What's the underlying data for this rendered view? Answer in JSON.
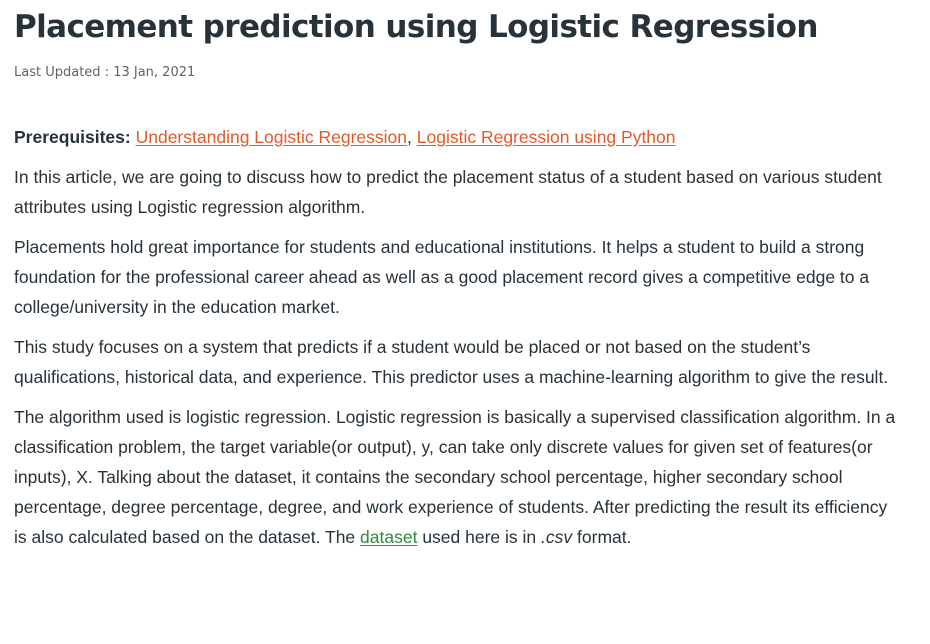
{
  "article": {
    "title": "Placement prediction using Logistic Regression",
    "last_updated": "Last Updated : 13 Jan, 2021"
  },
  "prerequisites": {
    "label": "Prerequisites:",
    "link1": "Understanding Logistic Regression",
    "separator": ",",
    "link2": "Logistic Regression using Python"
  },
  "paragraphs": {
    "p1": "In this article, we are going to discuss how to predict the placement status of a student based on various student attributes using Logistic regression algorithm.",
    "p2": "Placements hold great importance for students and educational institutions. It helps a student to build a strong foundation for the professional career ahead as well as a good placement record gives a competitive edge to a college/university in the education market.",
    "p3": "This study focuses on a system that predicts if a student would be placed or not based on the student’s qualifications, historical data, and experience. This predictor uses a machine-learning algorithm to give the result.",
    "p4_before_link": "The algorithm used is logistic regression. Logistic regression is basically a supervised classification algorithm. In a classification problem, the target variable(or output), y, can take only discrete values for given set of features(or inputs), X. Talking about the dataset, it contains the secondary school percentage, higher secondary school percentage, degree percentage, degree, and work experience of students. After predicting the result its efficiency is also calculated based on the dataset. The",
    "p4_link": "dataset",
    "p4_after_link": "used here is in",
    "p4_format": ".csv",
    "p4_end": "format."
  },
  "colors": {
    "text": "#273239",
    "link_orange": "#e05a2b",
    "link_green": "#2e8b3e",
    "meta": "#5f6368"
  }
}
